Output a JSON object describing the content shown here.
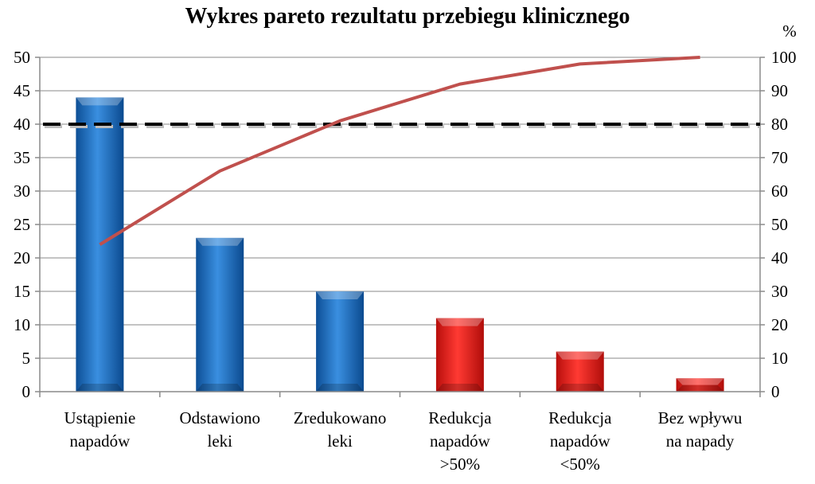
{
  "chart_data": {
    "type": "bar",
    "title": "Wykres pareto rezultatu przebiegu klinicznego",
    "categories": [
      [
        "Ustąpienie",
        "napadów"
      ],
      [
        "Odstawiono",
        "leki"
      ],
      [
        "Zredukowano",
        "leki"
      ],
      [
        "Redukcja",
        "napadów",
        ">50%"
      ],
      [
        "Redukcja",
        "napadów",
        "<50%"
      ],
      [
        "Bez wpływu",
        "na napady"
      ]
    ],
    "values": [
      44,
      23,
      15,
      11,
      6,
      2
    ],
    "bar_colors": [
      "#1f6fc2",
      "#1f6fc2",
      "#1f6fc2",
      "#e8201c",
      "#e8201c",
      "#e8201c"
    ],
    "cumulative_percent": [
      44,
      66,
      81,
      92,
      98,
      100
    ],
    "threshold_percent": 80,
    "ylim": [
      0,
      50
    ],
    "y_ticks": [
      0,
      5,
      10,
      15,
      20,
      25,
      30,
      35,
      40,
      45,
      50
    ],
    "y2lim": [
      0,
      100
    ],
    "y2_ticks": [
      0,
      10,
      20,
      30,
      40,
      50,
      60,
      70,
      80,
      90,
      100
    ],
    "y2_unit_label": "%",
    "line_color": "#c0504d",
    "grid": true,
    "legend": "none"
  }
}
